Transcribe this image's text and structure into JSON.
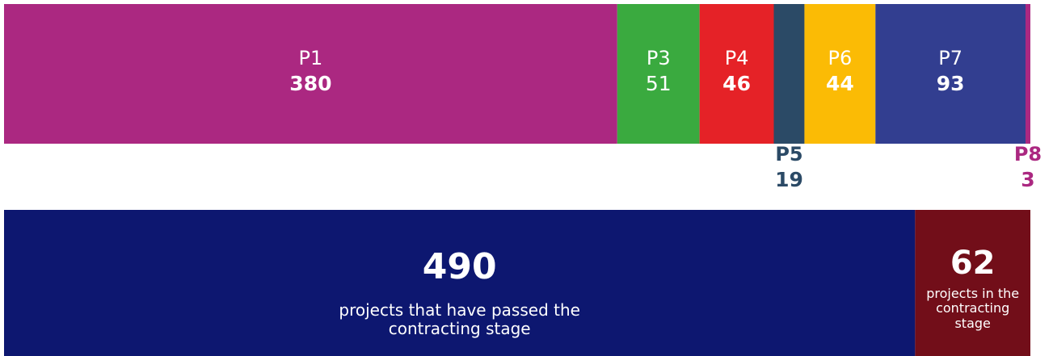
{
  "chart_data": [
    {
      "type": "stacked-bar",
      "categories": [
        "P1",
        "P3",
        "P4",
        "P5",
        "P6",
        "P7",
        "P8"
      ],
      "values": [
        380,
        51,
        46,
        19,
        44,
        93,
        3
      ],
      "colors": [
        "#ab2881",
        "#3aaa3f",
        "#e52227",
        "#2b4a66",
        "#fbbb05",
        "#323e90",
        "#ab2881"
      ],
      "value_bold": [
        true,
        false,
        true,
        true,
        true,
        true,
        true
      ]
    },
    {
      "type": "stacked-bar",
      "values": [
        490,
        62
      ],
      "labels": [
        "projects that have passed the contracting stage",
        "projects in the contracting stage"
      ],
      "colors": [
        "#0d1770",
        "#720e19"
      ]
    }
  ]
}
